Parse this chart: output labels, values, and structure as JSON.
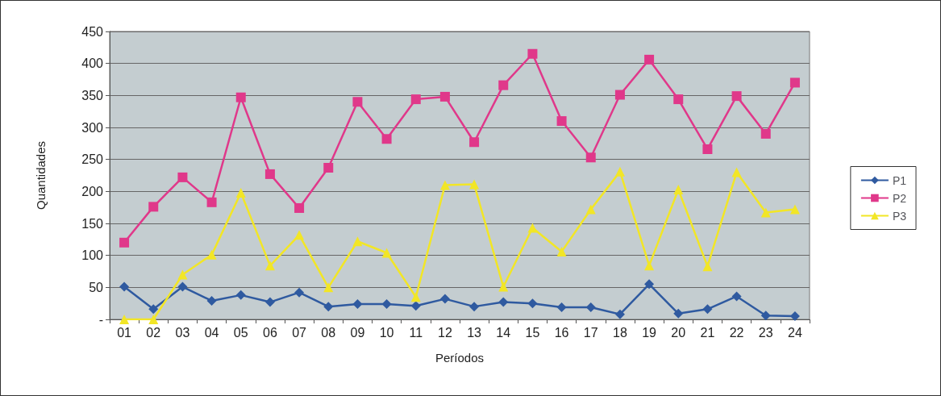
{
  "chart_data": {
    "type": "line",
    "xlabel": "Períodos",
    "ylabel": "Quantidades",
    "categories": [
      "01",
      "02",
      "03",
      "04",
      "05",
      "06",
      "07",
      "08",
      "09",
      "10",
      "11",
      "12",
      "13",
      "14",
      "15",
      "16",
      "17",
      "18",
      "19",
      "20",
      "21",
      "22",
      "23",
      "24"
    ],
    "series": [
      {
        "name": "P1",
        "color": "#2f5aa0",
        "marker": "diamond",
        "values": [
          51,
          16,
          51,
          29,
          38,
          27,
          42,
          20,
          24,
          24,
          21,
          32,
          20,
          27,
          25,
          19,
          19,
          8,
          55,
          9,
          16,
          36,
          6,
          5
        ]
      },
      {
        "name": "P2",
        "color": "#e0388a",
        "marker": "square",
        "values": [
          120,
          176,
          222,
          183,
          347,
          227,
          174,
          237,
          340,
          282,
          344,
          348,
          277,
          366,
          415,
          310,
          253,
          351,
          406,
          344,
          266,
          349,
          290,
          370
        ]
      },
      {
        "name": "P3",
        "color": "#f2e626",
        "marker": "triangle",
        "values": [
          0,
          0,
          70,
          101,
          198,
          84,
          132,
          50,
          122,
          104,
          35,
          210,
          211,
          51,
          143,
          106,
          172,
          231,
          84,
          203,
          83,
          230,
          167,
          172
        ]
      }
    ],
    "ylim": [
      0,
      450
    ],
    "yticks": [
      {
        "value": 0,
        "label": "-"
      },
      50,
      100,
      150,
      200,
      250,
      300,
      350,
      400,
      450
    ],
    "grid": "y",
    "legend": "right",
    "line_style": "solid"
  }
}
